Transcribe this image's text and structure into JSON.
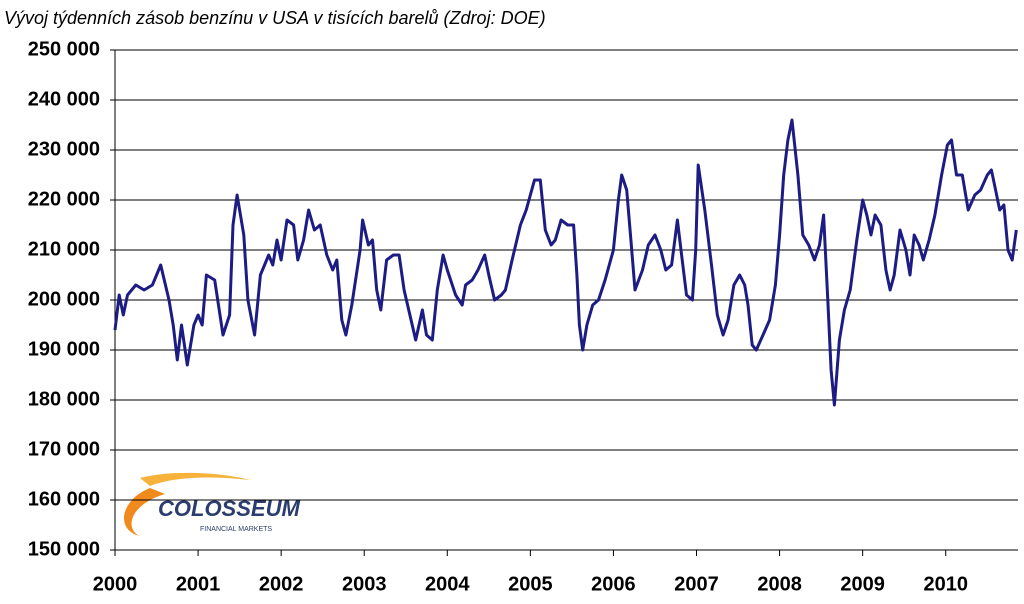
{
  "chart_data": {
    "type": "line",
    "title": "Vývoj týdenních zásob benzínu v USA v tisících barelů (Zdroj: DOE)",
    "logo": {
      "name": "COLOSSEUM",
      "tagline": "FINANCIAL MARKETS"
    },
    "xlim": [
      2000,
      2010.87
    ],
    "xticks": [
      2000,
      2001,
      2002,
      2003,
      2004,
      2005,
      2006,
      2007,
      2008,
      2009,
      2010
    ],
    "ylim": [
      150000,
      250000
    ],
    "yticks": [
      {
        "value": 150000,
        "label": "150 000"
      },
      {
        "value": 160000,
        "label": "160 000"
      },
      {
        "value": 170000,
        "label": "170 000"
      },
      {
        "value": 180000,
        "label": "180 000"
      },
      {
        "value": 190000,
        "label": "190 000"
      },
      {
        "value": 200000,
        "label": "200 000"
      },
      {
        "value": 210000,
        "label": "210 000"
      },
      {
        "value": 220000,
        "label": "220 000"
      },
      {
        "value": 230000,
        "label": "230 000"
      },
      {
        "value": 240000,
        "label": "240 000"
      },
      {
        "value": 250000,
        "label": "250 000"
      }
    ],
    "grid": true,
    "series": [
      {
        "color": "#1c1c84",
        "x": [
          2000.0,
          2000.05,
          2000.1,
          2000.15,
          2000.25,
          2000.35,
          2000.45,
          2000.55,
          2000.65,
          2000.7,
          2000.75,
          2000.8,
          2000.87,
          2000.95,
          2001.0,
          2001.05,
          2001.1,
          2001.2,
          2001.3,
          2001.38,
          2001.42,
          2001.47,
          2001.55,
          2001.6,
          2001.68,
          2001.75,
          2001.85,
          2001.9,
          2001.95,
          2002.0,
          2002.07,
          2002.15,
          2002.2,
          2002.27,
          2002.33,
          2002.4,
          2002.47,
          2002.55,
          2002.62,
          2002.67,
          2002.73,
          2002.78,
          2002.85,
          2002.95,
          2002.98,
          2003.05,
          2003.1,
          2003.15,
          2003.2,
          2003.27,
          2003.35,
          2003.42,
          2003.48,
          2003.55,
          2003.62,
          2003.7,
          2003.75,
          2003.82,
          2003.88,
          2003.95,
          2004.0,
          2004.1,
          2004.18,
          2004.22,
          2004.3,
          2004.37,
          2004.45,
          2004.5,
          2004.57,
          2004.65,
          2004.7,
          2004.78,
          2004.88,
          2004.95,
          2005.05,
          2005.12,
          2005.18,
          2005.25,
          2005.3,
          2005.37,
          2005.45,
          2005.52,
          2005.56,
          2005.59,
          2005.63,
          2005.68,
          2005.75,
          2005.82,
          2005.9,
          2006.0,
          2006.06,
          2006.1,
          2006.16,
          2006.21,
          2006.26,
          2006.35,
          2006.42,
          2006.5,
          2006.57,
          2006.63,
          2006.7,
          2006.77,
          2006.82,
          2006.88,
          2006.95,
          2006.99,
          2007.02,
          2007.1,
          2007.18,
          2007.25,
          2007.32,
          2007.38,
          2007.45,
          2007.52,
          2007.58,
          2007.62,
          2007.67,
          2007.72,
          2007.8,
          2007.88,
          2007.95,
          2008.0,
          2008.05,
          2008.1,
          2008.15,
          2008.22,
          2008.28,
          2008.35,
          2008.42,
          2008.48,
          2008.53,
          2008.58,
          2008.62,
          2008.66,
          2008.72,
          2008.78,
          2008.85,
          2008.93,
          2009.0,
          2009.05,
          2009.1,
          2009.15,
          2009.22,
          2009.28,
          2009.33,
          2009.38,
          2009.45,
          2009.52,
          2009.57,
          2009.62,
          2009.68,
          2009.73,
          2009.8,
          2009.87,
          2009.95,
          2010.02,
          2010.07,
          2010.13,
          2010.2,
          2010.27,
          2010.35,
          2010.42,
          2010.5,
          2010.55,
          2010.6,
          2010.65,
          2010.7,
          2010.75,
          2010.8,
          2010.85
        ],
        "values": [
          194000,
          201000,
          197000,
          201000,
          203000,
          202000,
          203000,
          207000,
          200000,
          195000,
          188000,
          195000,
          187000,
          195000,
          197000,
          195000,
          205000,
          204000,
          193000,
          197000,
          215000,
          221000,
          213000,
          200000,
          193000,
          205000,
          209000,
          207000,
          212000,
          208000,
          216000,
          215000,
          208000,
          212000,
          218000,
          214000,
          215000,
          209000,
          206000,
          208000,
          196000,
          193000,
          199000,
          210000,
          216000,
          211000,
          212000,
          202000,
          198000,
          208000,
          209000,
          209000,
          202000,
          197000,
          192000,
          198000,
          193000,
          192000,
          202000,
          209000,
          206000,
          201000,
          199000,
          203000,
          204000,
          206000,
          209000,
          205000,
          200000,
          201000,
          202000,
          208000,
          215000,
          218000,
          224000,
          224000,
          214000,
          211000,
          212000,
          216000,
          215000,
          215000,
          205000,
          195000,
          190000,
          195000,
          199000,
          200000,
          204000,
          210000,
          220000,
          225000,
          222000,
          212000,
          202000,
          206000,
          211000,
          213000,
          210000,
          206000,
          207000,
          216000,
          209000,
          201000,
          200000,
          210000,
          227000,
          218000,
          207000,
          197000,
          193000,
          196000,
          203000,
          205000,
          203000,
          199000,
          191000,
          190000,
          193000,
          196000,
          203000,
          213000,
          225000,
          232000,
          236000,
          225000,
          213000,
          211000,
          208000,
          211000,
          217000,
          200000,
          186000,
          179000,
          192000,
          198000,
          202000,
          212000,
          220000,
          217000,
          213000,
          217000,
          215000,
          206000,
          202000,
          205000,
          214000,
          210000,
          205000,
          213000,
          211000,
          208000,
          212000,
          217000,
          225000,
          231000,
          232000,
          225000,
          225000,
          218000,
          221000,
          222000,
          225000,
          226000,
          222000,
          218000,
          219000,
          210000,
          208000,
          214000
        ]
      }
    ]
  }
}
